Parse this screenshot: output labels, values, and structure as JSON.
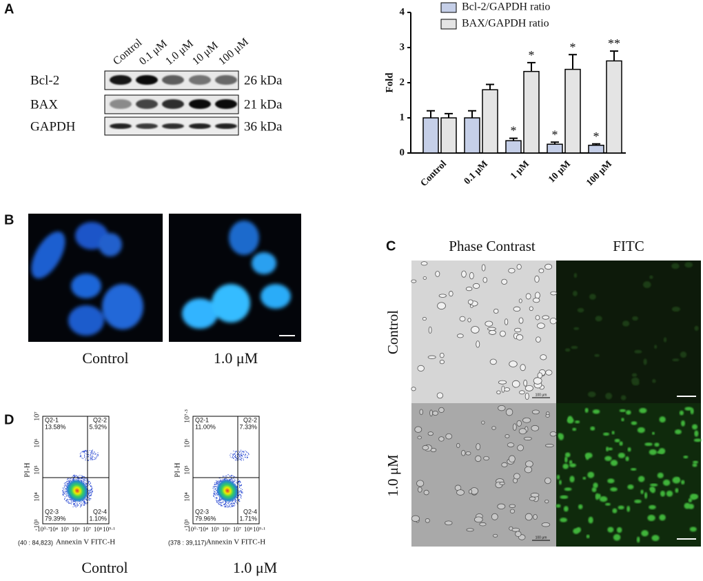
{
  "panel_labels": [
    "A",
    "B",
    "C",
    "D"
  ],
  "western_blot": {
    "lanes": [
      "Control",
      "0.1 μM",
      "1.0 μM",
      "10 μM",
      "100 μM"
    ],
    "proteins": [
      {
        "name": "Bcl-2",
        "size": "26 kDa"
      },
      {
        "name": "BAX",
        "size": "21 kDa"
      },
      {
        "name": "GAPDH",
        "size": "36 kDa"
      }
    ]
  },
  "chart_data": {
    "type": "bar",
    "ylabel": "Fold",
    "categories": [
      "Control",
      "0.1 μM",
      "1 μM",
      "10 μM",
      "100 μM"
    ],
    "series": [
      {
        "name": "Bcl-2/GAPDH ratio",
        "color": "#c5cfe8",
        "values": [
          1.0,
          1.0,
          0.35,
          0.25,
          0.22
        ],
        "errors": [
          0.2,
          0.2,
          0.07,
          0.06,
          0.04
        ],
        "significance": [
          null,
          null,
          "*",
          "*",
          "*"
        ]
      },
      {
        "name": "BAX/GAPDH ratio",
        "color": "#e4e4e4",
        "values": [
          1.0,
          1.8,
          2.32,
          2.38,
          2.62
        ],
        "errors": [
          0.12,
          0.15,
          0.25,
          0.42,
          0.28
        ],
        "significance": [
          null,
          null,
          "*",
          "*",
          "**"
        ]
      }
    ],
    "ylim": [
      0,
      4
    ],
    "yticks": [
      0,
      1,
      2,
      3,
      4
    ]
  },
  "nuclei_staining": {
    "conditions": [
      "Control",
      "1.0 μM"
    ]
  },
  "microscopy": {
    "columns": [
      "Phase Contrast",
      "FITC"
    ],
    "rows": [
      "Control",
      "1.0 μM"
    ],
    "scale_bar": "100 μm"
  },
  "flow_cytometry": {
    "ylabel": "PI-H",
    "xlabel": "Annexin V FITC-H",
    "plots": [
      {
        "condition": "Control",
        "events": "(40 : 84,823)",
        "quadrants": [
          {
            "name": "Q2-1",
            "percent": "13.58%"
          },
          {
            "name": "Q2-2",
            "percent": "5.92%"
          },
          {
            "name": "Q2-3",
            "percent": "79.39%"
          },
          {
            "name": "Q2-4",
            "percent": "1.10%"
          }
        ],
        "yticks": [
          "10³",
          "10⁴",
          "10⁵",
          "10⁶",
          "10⁷"
        ],
        "xticks": [
          "-10⁰·⁷",
          "10⁴",
          "10⁵",
          "10⁶",
          "10⁷",
          "10⁸",
          "10⁹·¹"
        ]
      },
      {
        "condition": "1.0 μM",
        "events": "(378 : 39,117)",
        "quadrants": [
          {
            "name": "Q2-1",
            "percent": "11.00%"
          },
          {
            "name": "Q2-2",
            "percent": "7.33%"
          },
          {
            "name": "Q2-3",
            "percent": "79.96%"
          },
          {
            "name": "Q2-4",
            "percent": "1.71%"
          }
        ],
        "yticks": [
          "10³",
          "10⁴",
          "10⁵",
          "10⁶",
          "10⁷·³"
        ],
        "xticks": [
          "-10⁰·⁷",
          "10⁴",
          "10⁵",
          "10⁶",
          "10⁷",
          "10⁸",
          "10⁹·¹"
        ]
      }
    ]
  }
}
